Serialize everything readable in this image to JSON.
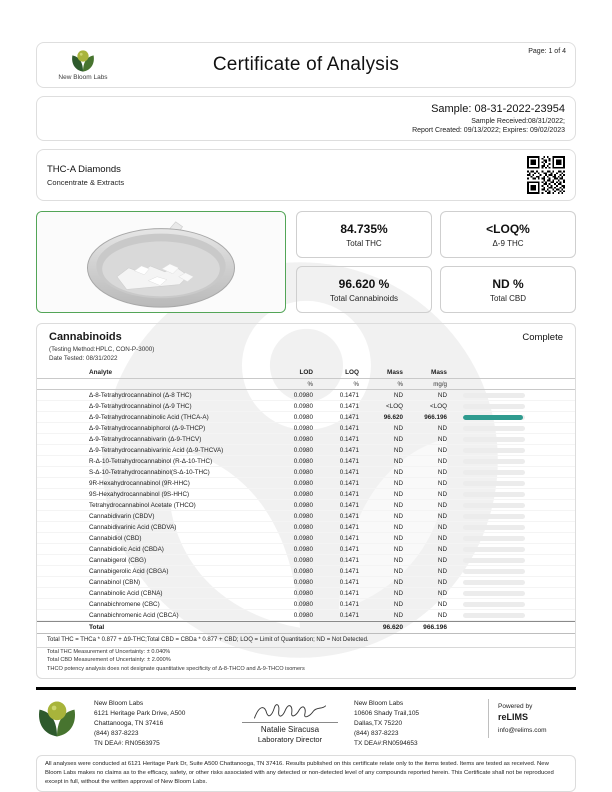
{
  "colors": {
    "accent_teal": "#2f9b8f",
    "logo_green_light": "#a8b43b",
    "logo_green_dark": "#2e5a2d",
    "photo_border_green": "#53a557"
  },
  "header": {
    "brand": "New Bloom Labs",
    "title": "Certificate of Analysis",
    "page": "Page: 1 of 4"
  },
  "sample": {
    "id": "Sample: 08-31-2022-23954",
    "received": "Sample Received:08/31/2022;",
    "report": "Report Created: 09/13/2022; Expires: 09/02/2023"
  },
  "product": {
    "name": "THC-A Diamonds",
    "category": "Concentrate & Extracts"
  },
  "summary": [
    {
      "value": "84.735%",
      "label": "Total THC"
    },
    {
      "value": "<LOQ%",
      "label": "Δ-9 THC"
    },
    {
      "value": "96.620 %",
      "label": "Total Cannabinoids"
    },
    {
      "value": "ND %",
      "label": "Total CBD"
    }
  ],
  "cannabinoids": {
    "title": "Cannabinoids",
    "status": "Complete",
    "method": "(Testing Method:HPLC, CON-P-3000)",
    "date_tested": "Date Tested: 08/31/2022",
    "columns": [
      "Analyte",
      "LOD",
      "LOQ",
      "Mass",
      "Mass"
    ],
    "units": [
      "%",
      "%",
      "%",
      "mg/g"
    ],
    "rows": [
      {
        "name": "Δ-8-Tetrahydrocannabinol (Δ-8 THC)",
        "lod": "0.0980",
        "loq": "0.1471",
        "mass_pct": "ND",
        "mass_mg": "ND",
        "bar": 0,
        "row_class": ""
      },
      {
        "name": "Δ-9-Tetrahydrocannabinol (Δ-9 THC)",
        "lod": "0.0980",
        "loq": "0.1471",
        "mass_pct": "<LOQ",
        "mass_mg": "<LOQ",
        "bar": 0,
        "row_class": ""
      },
      {
        "name": "Δ-9-Tetrahydrocannabinolic Acid (THCA-A)",
        "lod": "0.0980",
        "loq": "0.1471",
        "mass_pct": "96.620",
        "mass_mg": "966.196",
        "bar": 96.6,
        "row_class": "strong"
      },
      {
        "name": "Δ-9-Tetrahydrocannabiphorol (Δ-9-THCP)",
        "lod": "0.0980",
        "loq": "0.1471",
        "mass_pct": "ND",
        "mass_mg": "ND",
        "bar": 0,
        "row_class": ""
      },
      {
        "name": "Δ-9-Tetrahydrocannabivarin (Δ-9-THCV)",
        "lod": "0.0980",
        "loq": "0.1471",
        "mass_pct": "ND",
        "mass_mg": "ND",
        "bar": 0,
        "row_class": ""
      },
      {
        "name": "Δ-9-Tetrahydrocannabivarinic Acid (Δ-9-THCVA)",
        "lod": "0.0980",
        "loq": "0.1471",
        "mass_pct": "ND",
        "mass_mg": "ND",
        "bar": 0,
        "row_class": ""
      },
      {
        "name": "R-Δ-10-Tetrahydrocannabinol (R-Δ-10-THC)",
        "lod": "0.0980",
        "loq": "0.1471",
        "mass_pct": "ND",
        "mass_mg": "ND",
        "bar": 0,
        "row_class": ""
      },
      {
        "name": "S-Δ-10-Tetrahydrocannabinol(S-Δ-10-THC)",
        "lod": "0.0980",
        "loq": "0.1471",
        "mass_pct": "ND",
        "mass_mg": "ND",
        "bar": 0,
        "row_class": ""
      },
      {
        "name": "9R-Hexahydrocannabinol (9R-HHC)",
        "lod": "0.0980",
        "loq": "0.1471",
        "mass_pct": "ND",
        "mass_mg": "ND",
        "bar": 0,
        "row_class": ""
      },
      {
        "name": "9S-Hexahydrocannabinol (9S-HHC)",
        "lod": "0.0980",
        "loq": "0.1471",
        "mass_pct": "ND",
        "mass_mg": "ND",
        "bar": 0,
        "row_class": ""
      },
      {
        "name": "Tetrahydrocannabinol Acetate (THCO)",
        "lod": "0.0980",
        "loq": "0.1471",
        "mass_pct": "ND",
        "mass_mg": "ND",
        "bar": 0,
        "row_class": ""
      },
      {
        "name": "Cannabidivarin (CBDV)",
        "lod": "0.0980",
        "loq": "0.1471",
        "mass_pct": "ND",
        "mass_mg": "ND",
        "bar": 0,
        "row_class": ""
      },
      {
        "name": "Cannabidivarinic Acid (CBDVA)",
        "lod": "0.0980",
        "loq": "0.1471",
        "mass_pct": "ND",
        "mass_mg": "ND",
        "bar": 0,
        "row_class": ""
      },
      {
        "name": "Cannabidiol (CBD)",
        "lod": "0.0980",
        "loq": "0.1471",
        "mass_pct": "ND",
        "mass_mg": "ND",
        "bar": 0,
        "row_class": ""
      },
      {
        "name": "Cannabidiolic Acid (CBDA)",
        "lod": "0.0980",
        "loq": "0.1471",
        "mass_pct": "ND",
        "mass_mg": "ND",
        "bar": 0,
        "row_class": ""
      },
      {
        "name": "Cannabigerol (CBG)",
        "lod": "0.0980",
        "loq": "0.1471",
        "mass_pct": "ND",
        "mass_mg": "ND",
        "bar": 0,
        "row_class": ""
      },
      {
        "name": "Cannabigerolic Acid (CBGA)",
        "lod": "0.0980",
        "loq": "0.1471",
        "mass_pct": "ND",
        "mass_mg": "ND",
        "bar": 0,
        "row_class": ""
      },
      {
        "name": "Cannabinol (CBN)",
        "lod": "0.0980",
        "loq": "0.1471",
        "mass_pct": "ND",
        "mass_mg": "ND",
        "bar": 0,
        "row_class": ""
      },
      {
        "name": "Cannabinolic Acid (CBNA)",
        "lod": "0.0980",
        "loq": "0.1471",
        "mass_pct": "ND",
        "mass_mg": "ND",
        "bar": 0,
        "row_class": ""
      },
      {
        "name": "Cannabichromene (CBC)",
        "lod": "0.0980",
        "loq": "0.1471",
        "mass_pct": "ND",
        "mass_mg": "ND",
        "bar": 0,
        "row_class": ""
      },
      {
        "name": "Cannabichromenic Acid (CBCA)",
        "lod": "0.0980",
        "loq": "0.1471",
        "mass_pct": "ND",
        "mass_mg": "ND",
        "bar": 0,
        "row_class": ""
      }
    ],
    "total": {
      "label": "Total",
      "mass_pct": "96.620",
      "mass_mg": "966.196"
    },
    "notes": [
      "Total THC = THCa * 0.877 + Δ9-THC;Total CBD = CBDa * 0.877 + CBD; LOQ = Limit of Quantitation; ND = Not Detected.",
      "Total THC Measurement of Uncertainty: ± 0.040%",
      "Total CBD Measurement of Uncertainty: ± 2.000%",
      "THCO potency analysis does not designate quantitative specificity of Δ-8-THCO and Δ-9-THCO isomers"
    ]
  },
  "footer": {
    "lab1": {
      "name": "New Bloom Labs",
      "address1": "6121 Heritage Park Drive, A500",
      "address2": "Chattanooga, TN 37416",
      "phone": "(844) 837-8223",
      "dea": "TN DEA#: RN0563975"
    },
    "signatory": {
      "name": "Natalie Siracusa",
      "title": "Laboratory Director"
    },
    "lab2": {
      "name": "New Bloom Labs",
      "address1": "10606 Shady Trail,105",
      "address2": "Dallas,TX 75220",
      "phone": "(844) 837-8223",
      "dea": "TX DEA#:RN0594653"
    },
    "powered": {
      "label": "Powered by",
      "brand": "reLIMS",
      "email": "info@relims.com"
    }
  },
  "disclaimer": "All analyses were conducted at 6121 Heritage Park Dr, Suite A500 Chattanooga, TN 37416. Results published on this certificate relate only to the items tested. Items are tested as received. New Bloom Labs makes no claims as to the efficacy, safety, or other risks associated with any detected or non-detected level of any compounds reported herein. This Certificate shall not be reproduced except in full, without the written approval of New Bloom Labs."
}
